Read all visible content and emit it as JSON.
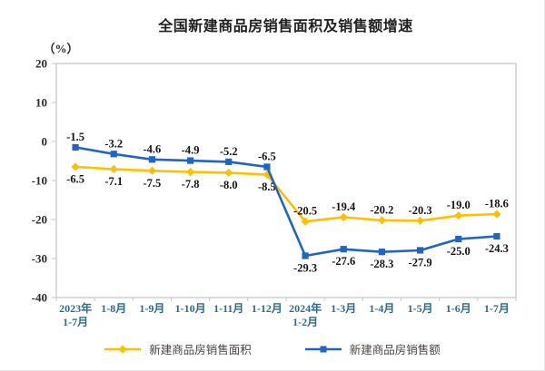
{
  "title": "全国新建商品房销售面积及销售额增速",
  "chart_data": {
    "type": "line",
    "unit_label": "（%）",
    "ylim": [
      -40,
      20
    ],
    "y_ticks": [
      20,
      10,
      0,
      -10,
      -20,
      -30,
      -40
    ],
    "grid": false,
    "legend_position": "bottom",
    "categories": [
      [
        "2023年",
        "1-7月"
      ],
      [
        "1-8月"
      ],
      [
        "1-9月"
      ],
      [
        "1-10月"
      ],
      [
        "1-11月"
      ],
      [
        "1-12月"
      ],
      [
        "2024年",
        "1-2月"
      ],
      [
        "1-3月"
      ],
      [
        "1-4月"
      ],
      [
        "1-5月"
      ],
      [
        "1-6月"
      ],
      [
        "1-7月"
      ]
    ],
    "series": [
      {
        "name": "新建商品房销售面积",
        "color": "#FFC000",
        "marker": "diamond",
        "values": [
          "-6.5",
          "-7.1",
          "-7.5",
          "-7.8",
          "-8.0",
          "-8.5",
          "-20.5",
          "-19.4",
          "-20.2",
          "-20.3",
          "-19.0",
          "-18.6"
        ],
        "label_side": [
          "below",
          "below",
          "below",
          "below",
          "below",
          "below",
          "above",
          "above",
          "above",
          "above",
          "above",
          "above"
        ]
      },
      {
        "name": "新建商品房销售额",
        "color": "#2065C0",
        "marker": "square",
        "values": [
          "-1.5",
          "-3.2",
          "-4.6",
          "-4.9",
          "-5.2",
          "-6.5",
          "-29.3",
          "-27.6",
          "-28.3",
          "-27.9",
          "-25.0",
          "-24.3"
        ],
        "label_side": [
          "above",
          "above",
          "above",
          "above",
          "above",
          "above",
          "below",
          "below",
          "below",
          "below",
          "below",
          "below"
        ]
      }
    ]
  }
}
